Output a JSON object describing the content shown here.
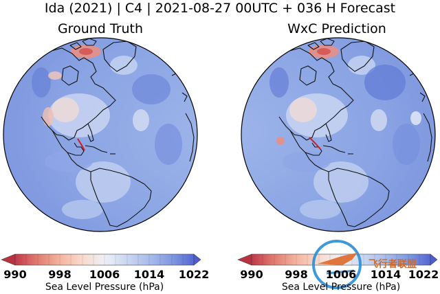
{
  "figure": {
    "title": "Ida (2021) | C4 | 2021-08-27 00UTC + 036 H Forecast"
  },
  "panels": [
    {
      "title": "Ground Truth"
    },
    {
      "title": "WxC Prediction"
    }
  ],
  "colorbar": {
    "label": "Sea Level Pressure (hPa)",
    "ticks": [
      "990",
      "998",
      "1006",
      "1014",
      "1022"
    ],
    "range": [
      990,
      1022
    ],
    "colormap_stops": [
      "#b2182b",
      "#d6604d",
      "#f4a582",
      "#fddbc7",
      "#f7f7f7",
      "#d1e5f0",
      "#92c5de",
      "#6f8fe0",
      "#4a5fd0"
    ]
  },
  "watermark": {
    "text": "飞行者联盟"
  }
}
